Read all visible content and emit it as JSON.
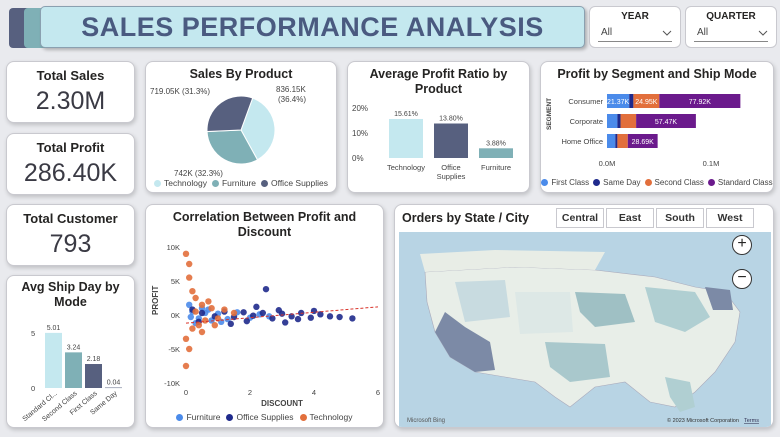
{
  "banner": {
    "title": "SALES PERFORMANCE ANALYSIS"
  },
  "slicers": {
    "year": {
      "label": "YEAR",
      "value": "All"
    },
    "quarter": {
      "label": "QUARTER",
      "value": "All"
    }
  },
  "kpis": {
    "total_sales": {
      "label": "Total Sales",
      "value": "2.30M"
    },
    "total_profit": {
      "label": "Total Profit",
      "value": "286.40K"
    },
    "total_customer": {
      "label": "Total Customer",
      "value": "793"
    }
  },
  "colors": {
    "technology": "#c4e8ef",
    "furniture": "#7fb0b6",
    "office_supplies": "#57607f",
    "first_class": "#4b8bea",
    "same_day": "#1f2a8c",
    "second_class": "#e26f3c",
    "standard_class": "#6b1a8c"
  },
  "chart_data": [
    {
      "id": "sales_by_product",
      "type": "pie",
      "title": "Sales By Product",
      "categories": [
        "Technology",
        "Furniture",
        "Office Supplies"
      ],
      "values": [
        836.15,
        742,
        719.05
      ],
      "labels": [
        "836.15K (36.4%)",
        "742K (32.3%)",
        "719.05K (31.3%)"
      ],
      "legend": [
        "Technology",
        "Furniture",
        "Office Supplies"
      ]
    },
    {
      "id": "avg_profit_ratio",
      "type": "bar",
      "title": "Average Profit Ratio by Product",
      "categories": [
        "Technology",
        "Office Supplies",
        "Furniture"
      ],
      "category_lines": [
        [
          "Technology"
        ],
        [
          "Office",
          "Supplies"
        ],
        [
          "Furniture"
        ]
      ],
      "values": [
        15.61,
        13.8,
        3.88
      ],
      "labels": [
        "15.61%",
        "13.80%",
        "3.88%"
      ],
      "ylim": [
        0,
        20
      ],
      "yticks": [
        "0%",
        "10%",
        "20%"
      ]
    },
    {
      "id": "profit_segment_ship",
      "type": "bar",
      "orientation": "horizontal-stacked",
      "title": "Profit by Segment and Ship Mode",
      "ylabel": "SEGMENT",
      "categories": [
        "Consumer",
        "Corporate",
        "Home Office"
      ],
      "series": [
        {
          "name": "First Class",
          "values": [
            21.37,
            10,
            8
          ]
        },
        {
          "name": "Same Day",
          "values": [
            4,
            3,
            2
          ]
        },
        {
          "name": "Second Class",
          "values": [
            24.95,
            15,
            10
          ]
        },
        {
          "name": "Standard Class",
          "values": [
            77.92,
            57.47,
            28.69
          ]
        }
      ],
      "labels": [
        [
          "21.37K",
          "",
          "24.95K",
          "77.92K"
        ],
        [
          "",
          "",
          "",
          "57.47K"
        ],
        [
          "",
          "",
          "",
          "28.69K"
        ]
      ],
      "xlim": [
        0,
        150
      ],
      "xticks": [
        "0.0M",
        "0.1M"
      ]
    },
    {
      "id": "avg_ship_day",
      "type": "bar",
      "title": "Avg Ship Day by Mode",
      "categories": [
        "Standard Cl...",
        "Second Class",
        "First Class",
        "Same Day"
      ],
      "values": [
        5.01,
        3.24,
        2.18,
        0.04
      ],
      "labels": [
        "5.01",
        "3.24",
        "2.18",
        "0.04"
      ],
      "ylim": [
        0,
        6
      ],
      "yticks": [
        "0",
        "5"
      ]
    },
    {
      "id": "profit_discount",
      "type": "scatter",
      "title": "Correlation Between Profit and Discount",
      "xlabel": "DISCOUNT",
      "ylabel": "PROFIT",
      "xlim": [
        0,
        6
      ],
      "ylim": [
        -10,
        10
      ],
      "xticks": [
        "0",
        "2",
        "4",
        "6"
      ],
      "yticks": [
        "10K",
        "5K",
        "0K",
        "-5K",
        "-10K"
      ],
      "legend": [
        "Furniture",
        "Office Supplies",
        "Technology"
      ],
      "series": [
        {
          "name": "Furniture",
          "points": [
            [
              0.1,
              1.5
            ],
            [
              0.2,
              0.5
            ],
            [
              0.4,
              -0.5
            ],
            [
              0.6,
              0.3
            ],
            [
              0.8,
              -0.8
            ],
            [
              1.0,
              0.2
            ],
            [
              1.3,
              -0.6
            ],
            [
              1.6,
              0.4
            ],
            [
              2.0,
              -0.4
            ],
            [
              2.3,
              0.1
            ],
            [
              0.3,
              -1.2
            ],
            [
              0.5,
              1.0
            ],
            [
              1.1,
              -1.0
            ],
            [
              0.7,
              0.8
            ],
            [
              2.6,
              -0.2
            ],
            [
              0.15,
              -0.3
            ]
          ]
        },
        {
          "name": "Office Supplies",
          "points": [
            [
              0.2,
              0.8
            ],
            [
              0.5,
              0.3
            ],
            [
              0.9,
              -0.2
            ],
            [
              1.2,
              0.5
            ],
            [
              1.5,
              -0.3
            ],
            [
              1.8,
              0.4
            ],
            [
              2.1,
              -0.1
            ],
            [
              2.4,
              0.3
            ],
            [
              2.7,
              -0.5
            ],
            [
              3.0,
              0.2
            ],
            [
              3.3,
              -0.2
            ],
            [
              3.6,
              0.3
            ],
            [
              3.9,
              -0.4
            ],
            [
              4.2,
              0.1
            ],
            [
              4.5,
              -0.2
            ],
            [
              4.8,
              -0.3
            ],
            [
              5.2,
              -0.5
            ],
            [
              2.5,
              3.8
            ],
            [
              1.4,
              -1.3
            ],
            [
              3.5,
              -0.6
            ],
            [
              0.4,
              -1.0
            ],
            [
              2.9,
              0.7
            ],
            [
              4.0,
              0.6
            ],
            [
              1.9,
              -0.9
            ],
            [
              3.1,
              -1.1
            ],
            [
              2.2,
              1.2
            ]
          ]
        },
        {
          "name": "Technology",
          "points": [
            [
              0.0,
              9.0
            ],
            [
              0.1,
              5.5
            ],
            [
              0.2,
              3.5
            ],
            [
              0.3,
              2.5
            ],
            [
              0.5,
              1.5
            ],
            [
              0.2,
              -2.0
            ],
            [
              0.1,
              -5.0
            ],
            [
              0.0,
              -7.5
            ],
            [
              0.4,
              -1.5
            ],
            [
              0.6,
              -0.8
            ],
            [
              0.3,
              0.5
            ],
            [
              0.8,
              1.0
            ],
            [
              1.0,
              -0.5
            ],
            [
              1.2,
              0.8
            ],
            [
              0.1,
              7.5
            ],
            [
              0.0,
              -3.5
            ],
            [
              0.5,
              -2.5
            ],
            [
              1.5,
              0.3
            ],
            [
              0.7,
              2.0
            ],
            [
              0.9,
              -1.5
            ]
          ]
        }
      ],
      "trend_line": {
        "x": [
          0,
          6
        ],
        "y": [
          -1.2,
          1.2
        ]
      }
    }
  ],
  "map": {
    "title": "Orders by State / City",
    "tabs": [
      "Central",
      "East",
      "South",
      "West"
    ],
    "zoom_in": "+",
    "zoom_out": "−",
    "attribution": "© 2023 Microsoft Corporation",
    "terms": "Terms",
    "logo": "Microsoft Bing"
  }
}
